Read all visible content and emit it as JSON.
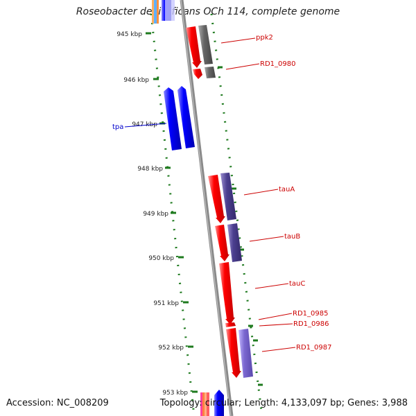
{
  "title": "Roseobacter denitrificans OCh 114, complete genome",
  "footer": {
    "accession_label": "Accession:",
    "accession": "NC_008209",
    "topology_label": "Topology:",
    "topology": "circular",
    "length_label": "Length:",
    "length": "4,133,097 bp",
    "genes_label": "Genes:",
    "genes": "3,988"
  },
  "kbp_ticks": [
    "945 kbp",
    "946 kbp",
    "947 kbp",
    "948 kbp",
    "949 kbp",
    "950 kbp",
    "951 kbp",
    "952 kbp",
    "953 kbp"
  ],
  "gene_labels": {
    "ppk2": "ppk2",
    "rd1_0980": "RD1_0980",
    "tpa": "tpa",
    "tauA": "tauA",
    "tauB": "tauB",
    "tauC": "tauC",
    "rd1_0985": "RD1_0985",
    "rd1_0986": "RD1_0986",
    "rd1_0987": "RD1_0987"
  },
  "colors": {
    "forward_gene": "#ff0000",
    "reverse_gene": "#0000ff",
    "grey_product": "#666666",
    "purple_product": "#4b3f8f",
    "lilac_product": "#7b68d0",
    "tick_green": "#1e7a1e",
    "label_red": "#cc0000",
    "label_blue": "#0000cc",
    "backbone": "#888888"
  }
}
